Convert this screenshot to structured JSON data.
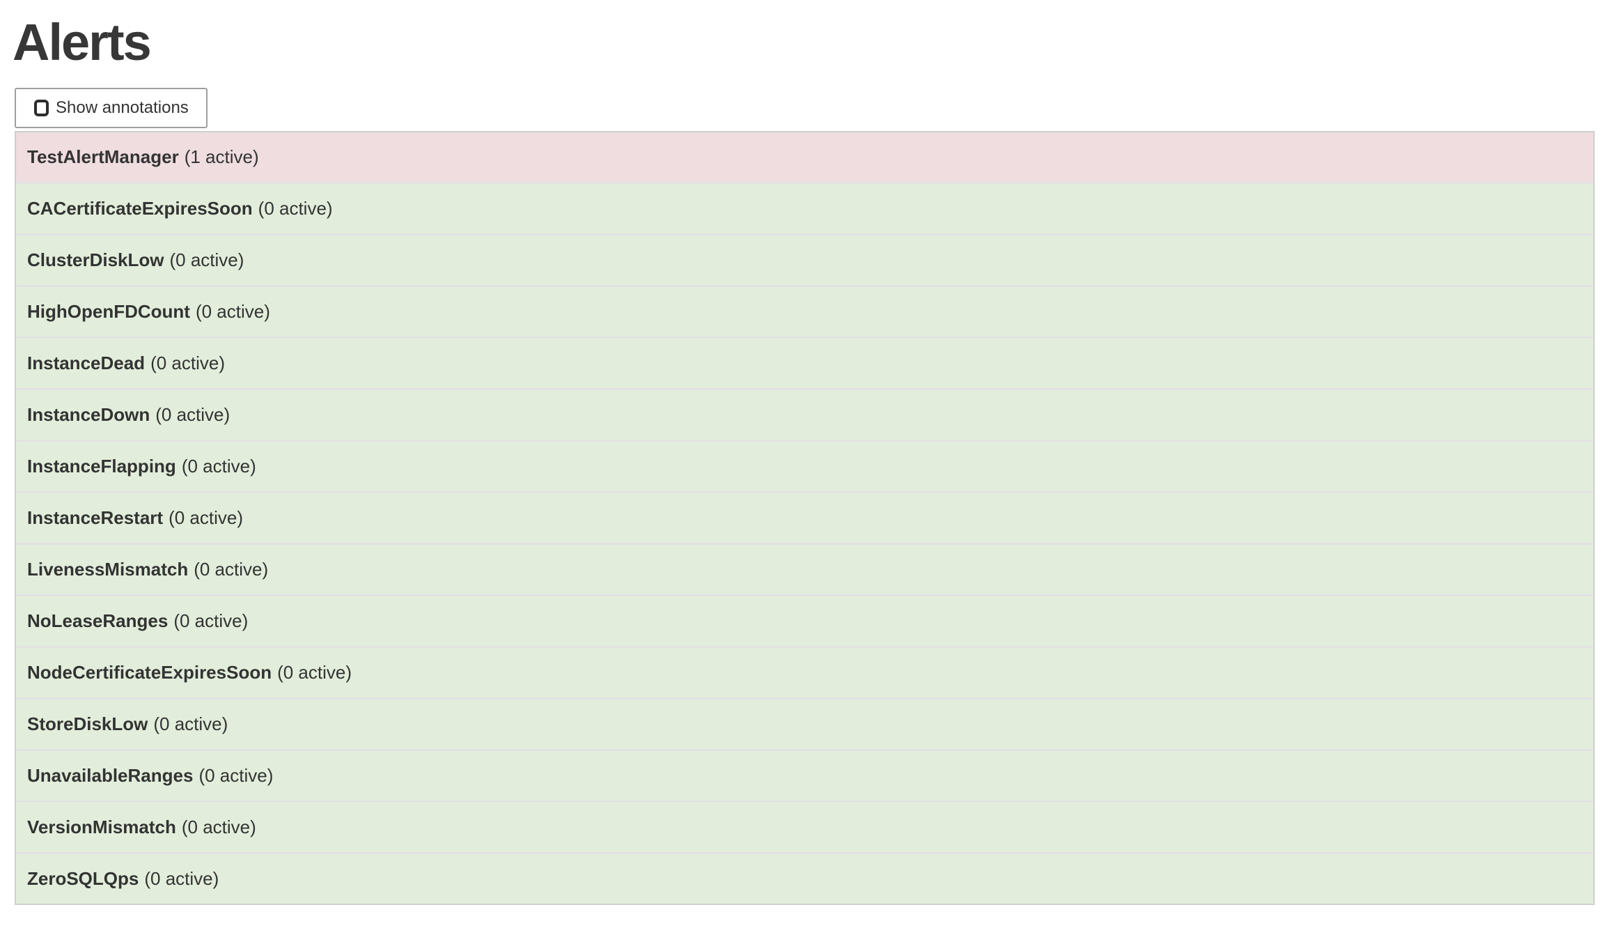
{
  "header": {
    "title": "Alerts"
  },
  "toolbar": {
    "show_annotations_label": "Show annotations",
    "annotations_checked": false
  },
  "colors": {
    "active_row_bg": "#efdde0",
    "inactive_row_bg": "#e2eedb",
    "text": "#333333"
  },
  "alerts": [
    {
      "name": "TestAlertManager",
      "active": 1,
      "count_label": "(1 active)"
    },
    {
      "name": "CACertificateExpiresSoon",
      "active": 0,
      "count_label": "(0 active)"
    },
    {
      "name": "ClusterDiskLow",
      "active": 0,
      "count_label": "(0 active)"
    },
    {
      "name": "HighOpenFDCount",
      "active": 0,
      "count_label": "(0 active)"
    },
    {
      "name": "InstanceDead",
      "active": 0,
      "count_label": "(0 active)"
    },
    {
      "name": "InstanceDown",
      "active": 0,
      "count_label": "(0 active)"
    },
    {
      "name": "InstanceFlapping",
      "active": 0,
      "count_label": "(0 active)"
    },
    {
      "name": "InstanceRestart",
      "active": 0,
      "count_label": "(0 active)"
    },
    {
      "name": "LivenessMismatch",
      "active": 0,
      "count_label": "(0 active)"
    },
    {
      "name": "NoLeaseRanges",
      "active": 0,
      "count_label": "(0 active)"
    },
    {
      "name": "NodeCertificateExpiresSoon",
      "active": 0,
      "count_label": "(0 active)"
    },
    {
      "name": "StoreDiskLow",
      "active": 0,
      "count_label": "(0 active)"
    },
    {
      "name": "UnavailableRanges",
      "active": 0,
      "count_label": "(0 active)"
    },
    {
      "name": "VersionMismatch",
      "active": 0,
      "count_label": "(0 active)"
    },
    {
      "name": "ZeroSQLQps",
      "active": 0,
      "count_label": "(0 active)"
    }
  ]
}
